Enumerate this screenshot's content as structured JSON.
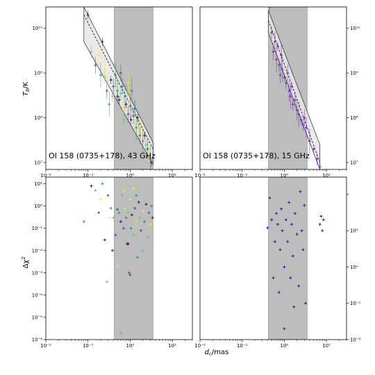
{
  "figure": {
    "x_axis_label": "d_c/mas",
    "y_axis_label_top": "T_b/K",
    "y_axis_label_bottom": "Δχ²"
  },
  "colors": {
    "band": "#bdbdbd",
    "band_edge": "#888888",
    "fit_fill": "#e6e6e6",
    "fit_line": "#222222",
    "point_palette": [
      "#440154",
      "#3b528b",
      "#21918c",
      "#5ec962",
      "#fde725"
    ],
    "point_palette_15": [
      "#3a0f8f",
      "#6a1fb0",
      "#2a2a90"
    ]
  },
  "chart_data": [
    {
      "id": "tb-43",
      "type": "scatter",
      "label": "OI 158 (0735+178), 43 GHz",
      "xscale": "log",
      "yscale": "log",
      "xlim": [
        0.01,
        30
      ],
      "ylim": [
        7000000,
        30000000000
      ],
      "ylabel": "T_b/K",
      "xticks": [
        "10⁻²",
        "10⁻¹",
        "10⁰",
        "10¹"
      ],
      "yticks": [
        "10⁷",
        "10⁸",
        "10⁹",
        "10¹⁰"
      ],
      "yticks_side": "left",
      "band": [
        0.42,
        3.5
      ],
      "fit": {
        "x": [
          0.08,
          3.5
        ],
        "y": [
          20000000000,
          20000000
        ],
        "y_low": [
          5000000000,
          9000000
        ],
        "y_high": [
          30000000000,
          28000000
        ]
      },
      "points": [
        [
          0.1,
          20000000000
        ],
        [
          0.12,
          3000000000
        ],
        [
          0.15,
          1500000000
        ],
        [
          0.18,
          2500000000
        ],
        [
          0.2,
          900000000
        ],
        [
          0.22,
          5000000000
        ],
        [
          0.25,
          800000000
        ],
        [
          0.28,
          400000000
        ],
        [
          0.3,
          600000000
        ],
        [
          0.32,
          200000000
        ],
        [
          0.35,
          700000000
        ],
        [
          0.38,
          300000000
        ],
        [
          0.4,
          500000000
        ],
        [
          0.45,
          700000000
        ],
        [
          0.5,
          400000000
        ],
        [
          0.55,
          250000000
        ],
        [
          0.6,
          350000000
        ],
        [
          0.65,
          500000000
        ],
        [
          0.7,
          150000000
        ],
        [
          0.75,
          300000000
        ],
        [
          0.8,
          200000000
        ],
        [
          0.85,
          400000000
        ],
        [
          0.9,
          120000000
        ],
        [
          0.95,
          220000000
        ],
        [
          1.0,
          180000000
        ],
        [
          1.05,
          90000000
        ],
        [
          1.1,
          150000000
        ],
        [
          1.2,
          110000000
        ],
        [
          1.3,
          80000000
        ],
        [
          1.4,
          60000000
        ],
        [
          1.5,
          100000000
        ],
        [
          1.6,
          70000000
        ],
        [
          1.7,
          40000000
        ],
        [
          1.8,
          55000000
        ],
        [
          2.0,
          30000000
        ],
        [
          2.2,
          40000000
        ],
        [
          2.4,
          25000000
        ],
        [
          2.6,
          20000000
        ],
        [
          2.8,
          15000000
        ],
        [
          3.0,
          12000000
        ],
        [
          3.2,
          10000000
        ],
        [
          3.4,
          9000000
        ],
        [
          0.6,
          1000000000
        ],
        [
          0.9,
          600000000
        ],
        [
          1.1,
          400000000
        ],
        [
          0.5,
          300000000
        ],
        [
          0.7,
          90000000
        ],
        [
          1.3,
          160000000
        ],
        [
          0.25,
          1200000000
        ],
        [
          0.45,
          900000000
        ]
      ]
    },
    {
      "id": "tb-15",
      "type": "scatter",
      "label": "OI 158 (0735+178), 15 GHz",
      "xscale": "log",
      "yscale": "log",
      "xlim": [
        0.01,
        30
      ],
      "ylim": [
        7000000,
        30000000000
      ],
      "xticks": [
        "10⁻²",
        "10⁻¹",
        "10⁰",
        "10¹"
      ],
      "yticks": [
        "10⁷",
        "10⁸",
        "10⁹",
        "10¹⁰"
      ],
      "yticks_side": "right",
      "band": [
        0.42,
        3.5
      ],
      "fit": {
        "x": [
          0.42,
          7.0
        ],
        "y": [
          15000000000,
          10000000
        ],
        "y_low": [
          8000000000,
          7000000
        ],
        "y_high": [
          25000000000,
          25000000
        ]
      },
      "points": [
        [
          0.45,
          30000000000
        ],
        [
          0.5,
          8000000000
        ],
        [
          0.55,
          3000000000
        ],
        [
          0.6,
          5000000000
        ],
        [
          0.65,
          2000000000
        ],
        [
          0.7,
          4000000000
        ],
        [
          0.75,
          1500000000
        ],
        [
          0.8,
          900000000
        ],
        [
          0.85,
          2500000000
        ],
        [
          0.9,
          1200000000
        ],
        [
          1.0,
          800000000
        ],
        [
          1.1,
          600000000
        ],
        [
          1.2,
          1000000000
        ],
        [
          1.3,
          400000000
        ],
        [
          1.4,
          300000000
        ],
        [
          1.5,
          500000000
        ],
        [
          1.6,
          200000000
        ],
        [
          1.8,
          250000000
        ],
        [
          2.0,
          150000000
        ],
        [
          2.2,
          120000000
        ],
        [
          2.5,
          90000000
        ],
        [
          2.8,
          70000000
        ],
        [
          3.0,
          100000000
        ],
        [
          3.3,
          60000000
        ],
        [
          4.0,
          30000000
        ],
        [
          5.0,
          20000000
        ],
        [
          6.0,
          12000000
        ],
        [
          7.0,
          8000000
        ]
      ]
    },
    {
      "id": "chi-43",
      "type": "scatter",
      "xscale": "log",
      "yscale": "log",
      "xlim": [
        0.01,
        30
      ],
      "ylim": [
        1e-06,
        20
      ],
      "ylabel": "Δχ²",
      "xticks": [
        "10⁻²",
        "10⁻¹",
        "10⁰",
        "10¹"
      ],
      "yticks": [
        "10⁻⁶",
        "10⁻⁵",
        "10⁻⁴",
        "10⁻³",
        "10⁻²",
        "10⁻¹",
        "10⁰",
        "10¹"
      ],
      "yticks_side": "left",
      "band": [
        0.42,
        3.5
      ],
      "points": [
        [
          0.08,
          0.2
        ],
        [
          0.12,
          8
        ],
        [
          0.15,
          5
        ],
        [
          0.18,
          0.5
        ],
        [
          0.2,
          2
        ],
        [
          0.22,
          10
        ],
        [
          0.25,
          0.03
        ],
        [
          0.28,
          0.0004
        ],
        [
          0.3,
          3
        ],
        [
          0.32,
          0.3
        ],
        [
          0.35,
          0.8
        ],
        [
          0.38,
          0.01
        ],
        [
          0.4,
          0.3
        ],
        [
          0.45,
          0.05
        ],
        [
          0.5,
          0.002
        ],
        [
          0.55,
          0.5
        ],
        [
          0.6,
          0.2
        ],
        [
          0.65,
          3
        ],
        [
          0.7,
          0.1
        ],
        [
          0.75,
          0.8
        ],
        [
          0.8,
          0.3
        ],
        [
          0.85,
          0.02
        ],
        [
          0.9,
          0.5
        ],
        [
          0.95,
          0.001
        ],
        [
          1.0,
          2
        ],
        [
          1.05,
          0.1
        ],
        [
          1.1,
          0.4
        ],
        [
          1.2,
          0.05
        ],
        [
          1.3,
          0.8
        ],
        [
          1.4,
          0.2
        ],
        [
          1.5,
          0.005
        ],
        [
          1.6,
          1.5
        ],
        [
          1.7,
          0.3
        ],
        [
          1.8,
          0.08
        ],
        [
          2.0,
          0.6
        ],
        [
          2.2,
          0.2
        ],
        [
          2.4,
          1.2
        ],
        [
          2.6,
          0.04
        ],
        [
          2.8,
          0.5
        ],
        [
          3.0,
          0.15
        ],
        [
          3.2,
          1
        ],
        [
          3.4,
          0.3
        ],
        [
          0.6,
          2e-06
        ],
        [
          1.0,
          0.0008
        ],
        [
          0.7,
          5
        ],
        [
          1.4,
          3
        ],
        [
          0.9,
          0.02
        ],
        [
          2.0,
          0.01
        ],
        [
          0.5,
          0.7
        ],
        [
          1.2,
          6
        ]
      ]
    },
    {
      "id": "chi-15",
      "type": "scatter",
      "xscale": "log",
      "yscale": "log",
      "xlim": [
        0.01,
        30
      ],
      "ylim": [
        0.001,
        30
      ],
      "xticks": [
        "10⁻²",
        "10⁻¹",
        "10⁰",
        "10¹"
      ],
      "yticks": [
        "10⁻²",
        "10⁻¹",
        "10⁰",
        "10¹"
      ],
      "yticks_side": "right",
      "band": [
        0.42,
        3.5
      ],
      "points": [
        [
          0.4,
          1.2
        ],
        [
          0.45,
          8
        ],
        [
          0.5,
          2
        ],
        [
          0.55,
          0.05
        ],
        [
          0.6,
          0.5
        ],
        [
          0.65,
          3
        ],
        [
          0.7,
          1.5
        ],
        [
          0.75,
          0.02
        ],
        [
          0.8,
          0.3
        ],
        [
          0.85,
          4
        ],
        [
          0.9,
          1
        ],
        [
          1.0,
          0.1
        ],
        [
          1.1,
          2
        ],
        [
          1.2,
          0.5
        ],
        [
          1.3,
          6
        ],
        [
          1.4,
          0.05
        ],
        [
          1.5,
          1.5
        ],
        [
          1.6,
          0.2
        ],
        [
          1.8,
          3
        ],
        [
          2.0,
          0.8
        ],
        [
          2.2,
          0.03
        ],
        [
          2.4,
          12
        ],
        [
          2.6,
          1
        ],
        [
          2.8,
          0.3
        ],
        [
          3.0,
          5
        ],
        [
          3.2,
          0.01
        ],
        [
          1.0,
          0.002
        ],
        [
          1.7,
          0.008
        ],
        [
          7.0,
          1.5
        ],
        [
          7.5,
          2.5
        ],
        [
          8.0,
          1
        ],
        [
          8.5,
          2
        ]
      ]
    }
  ]
}
